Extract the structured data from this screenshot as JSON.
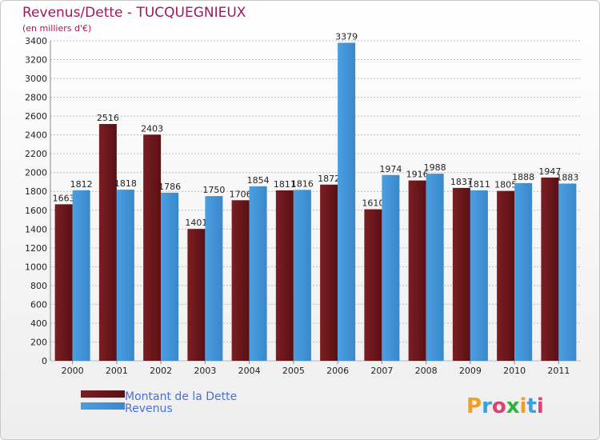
{
  "chart_data": {
    "type": "bar",
    "title": "Revenus/Dette - TUCQUEGNIEUX",
    "subtitle": "(en milliers d'€)",
    "categories": [
      "2000",
      "2001",
      "2002",
      "2003",
      "2004",
      "2005",
      "2006",
      "2007",
      "2008",
      "2009",
      "2010",
      "2011"
    ],
    "series": [
      {
        "name": "Montant de la Dette",
        "color": "#7a1e22",
        "values": [
          1663,
          2516,
          2403,
          1401,
          1706,
          1811,
          1872,
          1610,
          1916,
          1837,
          1805,
          1947
        ]
      },
      {
        "name": "Revenus",
        "color": "#4a9fe0",
        "values": [
          1812,
          1818,
          1786,
          1750,
          1854,
          1816,
          3379,
          1974,
          1988,
          1811,
          1888,
          1883
        ]
      }
    ],
    "ylim": [
      0,
      3400
    ],
    "yticks": [
      0,
      200,
      400,
      600,
      800,
      1000,
      1200,
      1400,
      1600,
      1800,
      2000,
      2200,
      2400,
      2600,
      2800,
      3000,
      3200,
      3400
    ],
    "grid": true,
    "legend": "bottom-left"
  },
  "logo": {
    "text": "Proxiti",
    "letters": [
      "P",
      "r",
      "o",
      "x",
      "i",
      "t",
      "i"
    ],
    "colors": [
      "#f0a020",
      "#3aa0e0",
      "#e04070",
      "#30b040",
      "#f0a020",
      "#3aa0e0",
      "#e04070"
    ]
  }
}
